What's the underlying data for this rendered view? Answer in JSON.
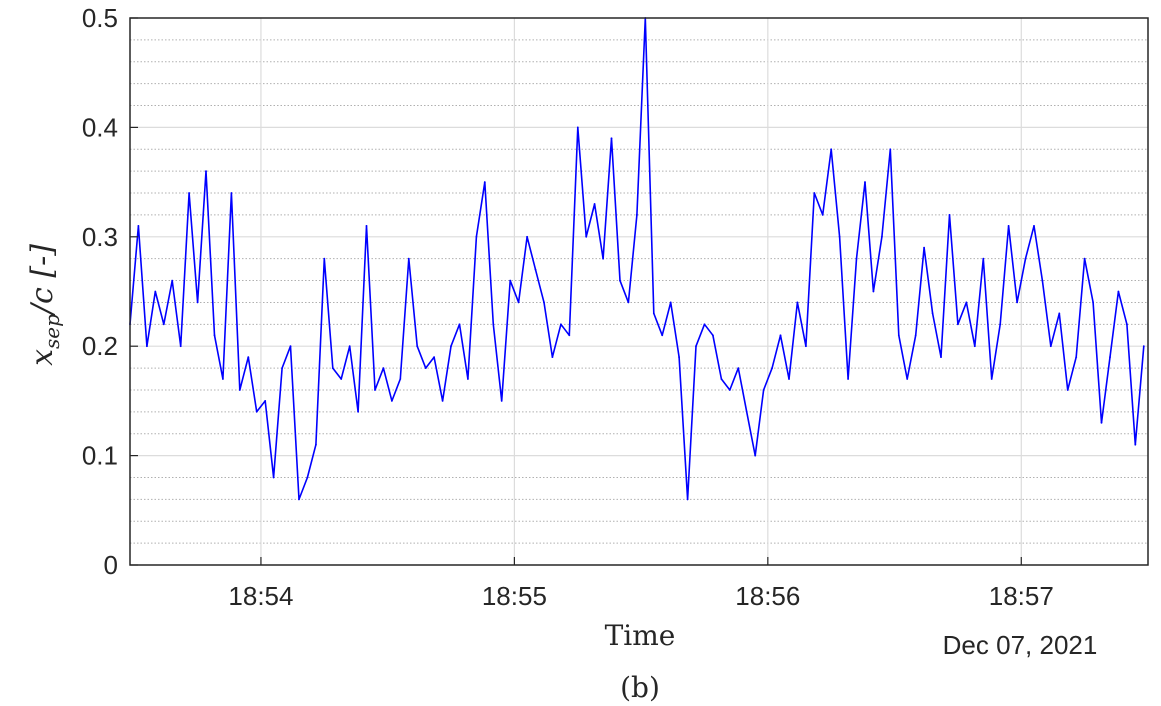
{
  "chart_data": {
    "type": "line",
    "panel_label": "(b)",
    "xlabel": "Time",
    "x_date_label": "Dec 07, 2021",
    "ylabel_main": "x",
    "ylabel_sub": "sep",
    "ylabel_tail": "/c [-]",
    "x_ticks": [
      "18:54",
      "18:55",
      "18:56",
      "18:57"
    ],
    "y_ticks": [
      "0",
      "0.1",
      "0.2",
      "0.3",
      "0.4",
      "0.5"
    ],
    "xlim": [
      "18:53:29",
      "18:57:30"
    ],
    "ylim": [
      0,
      0.5
    ],
    "grid": true,
    "minor_grid": true,
    "line_color": "#0000ff",
    "series": [
      {
        "x": [
          "18:53:29",
          "18:53:31",
          "18:53:33",
          "18:53:35",
          "18:53:37",
          "18:53:39",
          "18:53:41",
          "18:53:43",
          "18:53:45",
          "18:53:47",
          "18:53:49",
          "18:53:51",
          "18:53:53",
          "18:53:55",
          "18:53:57",
          "18:53:59",
          "18:54:01",
          "18:54:03",
          "18:54:05",
          "18:54:07",
          "18:54:09",
          "18:54:11",
          "18:54:13",
          "18:54:15",
          "18:54:17",
          "18:54:19",
          "18:54:21",
          "18:54:23",
          "18:54:25",
          "18:54:27",
          "18:54:29",
          "18:54:31",
          "18:54:33",
          "18:54:35",
          "18:54:37",
          "18:54:39",
          "18:54:41",
          "18:54:43",
          "18:54:45",
          "18:54:47",
          "18:54:49",
          "18:54:51",
          "18:54:53",
          "18:54:55",
          "18:54:57",
          "18:54:59",
          "18:55:01",
          "18:55:03",
          "18:55:05",
          "18:55:07",
          "18:55:09",
          "18:55:11",
          "18:55:13",
          "18:55:15",
          "18:55:17",
          "18:55:19",
          "18:55:21",
          "18:55:23",
          "18:55:25",
          "18:55:27",
          "18:55:29",
          "18:55:31",
          "18:55:33",
          "18:55:35",
          "18:55:37",
          "18:55:39",
          "18:55:41",
          "18:55:43",
          "18:55:45",
          "18:55:47",
          "18:55:49",
          "18:55:51",
          "18:55:53",
          "18:55:55",
          "18:55:57",
          "18:55:59",
          "18:56:01",
          "18:56:03",
          "18:56:05",
          "18:56:07",
          "18:56:09",
          "18:56:11",
          "18:56:13",
          "18:56:15",
          "18:56:17",
          "18:56:19",
          "18:56:21",
          "18:56:23",
          "18:56:25",
          "18:56:27",
          "18:56:29",
          "18:56:31",
          "18:56:33",
          "18:56:35",
          "18:56:37",
          "18:56:39",
          "18:56:41",
          "18:56:43",
          "18:56:45",
          "18:56:47",
          "18:56:49",
          "18:56:51",
          "18:56:53",
          "18:56:55",
          "18:56:57",
          "18:56:59",
          "18:57:01",
          "18:57:03",
          "18:57:05",
          "18:57:07",
          "18:57:09",
          "18:57:11",
          "18:57:13",
          "18:57:15",
          "18:57:17",
          "18:57:19",
          "18:57:21",
          "18:57:23",
          "18:57:25",
          "18:57:27",
          "18:57:29"
        ],
        "values": [
          0.22,
          0.31,
          0.2,
          0.25,
          0.22,
          0.26,
          0.2,
          0.34,
          0.24,
          0.36,
          0.21,
          0.17,
          0.34,
          0.16,
          0.19,
          0.14,
          0.15,
          0.08,
          0.18,
          0.2,
          0.06,
          0.08,
          0.11,
          0.28,
          0.18,
          0.17,
          0.2,
          0.14,
          0.31,
          0.16,
          0.18,
          0.15,
          0.17,
          0.28,
          0.2,
          0.18,
          0.19,
          0.15,
          0.2,
          0.22,
          0.17,
          0.3,
          0.35,
          0.22,
          0.15,
          0.26,
          0.24,
          0.3,
          0.27,
          0.24,
          0.19,
          0.22,
          0.21,
          0.4,
          0.3,
          0.33,
          0.28,
          0.39,
          0.26,
          0.24,
          0.32,
          0.5,
          0.23,
          0.21,
          0.24,
          0.19,
          0.06,
          0.2,
          0.22,
          0.21,
          0.17,
          0.16,
          0.18,
          0.14,
          0.1,
          0.16,
          0.18,
          0.21,
          0.17,
          0.24,
          0.2,
          0.34,
          0.32,
          0.38,
          0.3,
          0.17,
          0.28,
          0.35,
          0.25,
          0.3,
          0.38,
          0.21,
          0.17,
          0.21,
          0.29,
          0.23,
          0.19,
          0.32,
          0.22,
          0.24,
          0.2,
          0.28,
          0.17,
          0.22,
          0.31,
          0.24,
          0.28,
          0.31,
          0.26,
          0.2,
          0.23,
          0.16,
          0.19,
          0.28,
          0.24,
          0.13,
          0.19,
          0.25,
          0.22,
          0.11,
          0.2
        ]
      }
    ]
  }
}
